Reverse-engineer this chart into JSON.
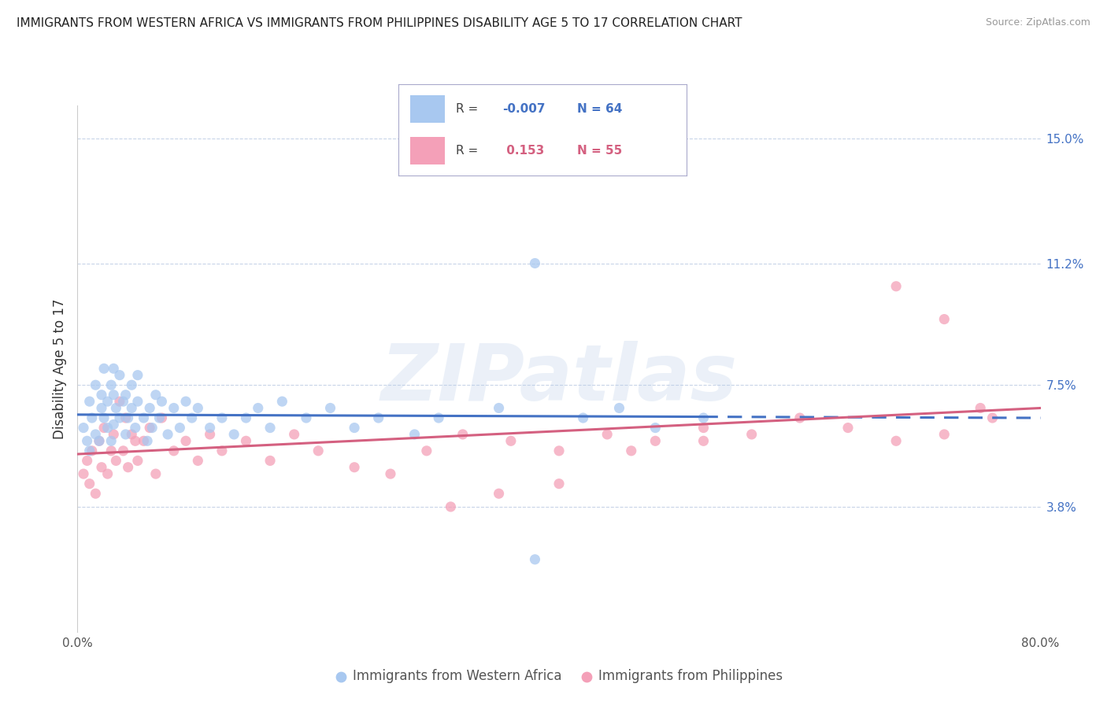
{
  "title": "IMMIGRANTS FROM WESTERN AFRICA VS IMMIGRANTS FROM PHILIPPINES DISABILITY AGE 5 TO 17 CORRELATION CHART",
  "source": "Source: ZipAtlas.com",
  "ylabel": "Disability Age 5 to 17",
  "xlim": [
    0.0,
    0.8
  ],
  "ylim": [
    0.0,
    0.16
  ],
  "yticks": [
    0.038,
    0.075,
    0.112,
    0.15
  ],
  "ytick_labels": [
    "3.8%",
    "7.5%",
    "11.2%",
    "15.0%"
  ],
  "xticks": [
    0.0,
    0.8
  ],
  "xtick_labels": [
    "0.0%",
    "80.0%"
  ],
  "series1_name": "Immigrants from Western Africa",
  "series2_name": "Immigrants from Philippines",
  "color1": "#a8c8f0",
  "color2": "#f4a0b8",
  "trend1_color": "#4472c4",
  "trend2_color": "#d46080",
  "R1": -0.007,
  "N1": 64,
  "R2": 0.153,
  "N2": 55,
  "background_color": "#ffffff",
  "grid_color": "#c8d4e8",
  "trend1_solid_end": 0.52,
  "trend1_start_y": 0.066,
  "trend1_end_y": 0.065,
  "trend2_start_y": 0.054,
  "trend2_end_y": 0.068,
  "western_africa_x": [
    0.005,
    0.008,
    0.01,
    0.01,
    0.012,
    0.015,
    0.015,
    0.018,
    0.02,
    0.02,
    0.022,
    0.022,
    0.025,
    0.025,
    0.028,
    0.028,
    0.03,
    0.03,
    0.03,
    0.032,
    0.035,
    0.035,
    0.038,
    0.04,
    0.04,
    0.042,
    0.045,
    0.045,
    0.048,
    0.05,
    0.05,
    0.055,
    0.058,
    0.06,
    0.062,
    0.065,
    0.068,
    0.07,
    0.075,
    0.08,
    0.085,
    0.09,
    0.095,
    0.1,
    0.11,
    0.12,
    0.13,
    0.14,
    0.15,
    0.16,
    0.17,
    0.19,
    0.21,
    0.23,
    0.25,
    0.28,
    0.3,
    0.35,
    0.38,
    0.42,
    0.45,
    0.48,
    0.52,
    0.38
  ],
  "western_africa_y": [
    0.062,
    0.058,
    0.07,
    0.055,
    0.065,
    0.06,
    0.075,
    0.058,
    0.068,
    0.072,
    0.065,
    0.08,
    0.062,
    0.07,
    0.058,
    0.075,
    0.063,
    0.072,
    0.08,
    0.068,
    0.065,
    0.078,
    0.07,
    0.06,
    0.072,
    0.065,
    0.068,
    0.075,
    0.062,
    0.07,
    0.078,
    0.065,
    0.058,
    0.068,
    0.062,
    0.072,
    0.065,
    0.07,
    0.06,
    0.068,
    0.062,
    0.07,
    0.065,
    0.068,
    0.062,
    0.065,
    0.06,
    0.065,
    0.068,
    0.062,
    0.07,
    0.065,
    0.068,
    0.062,
    0.065,
    0.06,
    0.065,
    0.068,
    0.022,
    0.065,
    0.068,
    0.062,
    0.065,
    0.112
  ],
  "philippines_x": [
    0.005,
    0.008,
    0.01,
    0.012,
    0.015,
    0.018,
    0.02,
    0.022,
    0.025,
    0.028,
    0.03,
    0.032,
    0.035,
    0.038,
    0.04,
    0.042,
    0.045,
    0.048,
    0.05,
    0.055,
    0.06,
    0.065,
    0.07,
    0.08,
    0.09,
    0.1,
    0.11,
    0.12,
    0.14,
    0.16,
    0.18,
    0.2,
    0.23,
    0.26,
    0.29,
    0.32,
    0.36,
    0.4,
    0.44,
    0.48,
    0.52,
    0.56,
    0.6,
    0.64,
    0.68,
    0.72,
    0.76,
    0.68,
    0.72,
    0.75,
    0.31,
    0.35,
    0.4,
    0.46,
    0.52
  ],
  "philippines_y": [
    0.048,
    0.052,
    0.045,
    0.055,
    0.042,
    0.058,
    0.05,
    0.062,
    0.048,
    0.055,
    0.06,
    0.052,
    0.07,
    0.055,
    0.065,
    0.05,
    0.06,
    0.058,
    0.052,
    0.058,
    0.062,
    0.048,
    0.065,
    0.055,
    0.058,
    0.052,
    0.06,
    0.055,
    0.058,
    0.052,
    0.06,
    0.055,
    0.05,
    0.048,
    0.055,
    0.06,
    0.058,
    0.055,
    0.06,
    0.058,
    0.062,
    0.06,
    0.065,
    0.062,
    0.058,
    0.06,
    0.065,
    0.105,
    0.095,
    0.068,
    0.038,
    0.042,
    0.045,
    0.055,
    0.058
  ]
}
